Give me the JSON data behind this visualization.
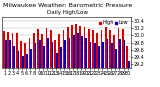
{
  "title": "Milwaukee Weather: Barometric Pressure",
  "subtitle": "Daily High/Low",
  "background_color": "#ffffff",
  "plot_background": "#ffffff",
  "days": [
    "1",
    "2",
    "3",
    "4",
    "5",
    "6",
    "7",
    "8",
    "9",
    "10",
    "11",
    "12",
    "13",
    "14",
    "15",
    "16",
    "17",
    "18",
    "19",
    "20",
    "21",
    "22",
    "23",
    "24",
    "25",
    "26",
    "27",
    "28",
    "29",
    "30"
  ],
  "highs": [
    30.12,
    30.1,
    30.08,
    30.06,
    29.85,
    29.78,
    29.92,
    30.08,
    30.18,
    30.04,
    30.2,
    30.14,
    29.88,
    30.04,
    30.16,
    30.24,
    30.3,
    30.32,
    30.26,
    30.22,
    30.18,
    30.14,
    30.08,
    30.16,
    30.22,
    30.14,
    30.02,
    30.2,
    30.18,
    29.72
  ],
  "lows": [
    29.88,
    29.88,
    29.72,
    29.58,
    29.42,
    29.48,
    29.62,
    29.78,
    29.86,
    29.72,
    29.92,
    29.82,
    29.52,
    29.68,
    29.86,
    29.92,
    30.02,
    30.08,
    29.98,
    29.92,
    29.82,
    29.78,
    29.72,
    29.82,
    29.9,
    29.78,
    29.62,
    29.9,
    29.88,
    29.28
  ],
  "high_color": "#dd0000",
  "low_color": "#0000cc",
  "ylim_low": 29.1,
  "ylim_high": 30.5,
  "ytick_vals": [
    29.2,
    29.4,
    29.6,
    29.8,
    30.0,
    30.2,
    30.4
  ],
  "ytick_labels": [
    "29.2",
    "29.4",
    "29.6",
    "29.8",
    "30.0",
    "30.2",
    "30.4"
  ],
  "title_fontsize": 4.5,
  "tick_fontsize": 3.5,
  "legend_fontsize": 3.5
}
